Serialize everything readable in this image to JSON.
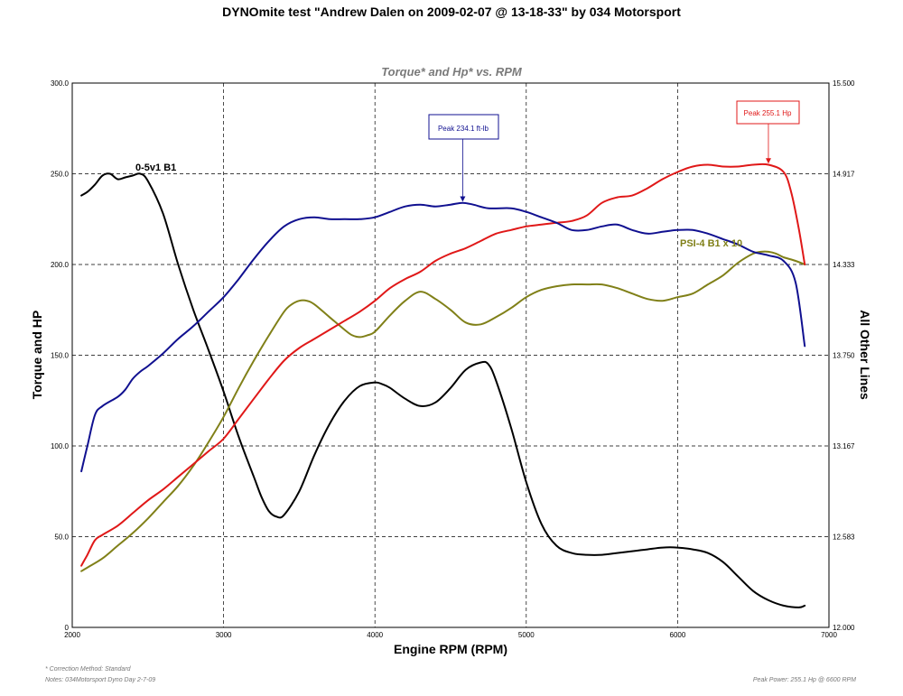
{
  "title": "DYNOmite test \"Andrew Dalen on 2009-02-07 @ 13-18-33\" by 034 Motorsport",
  "chart_data": {
    "type": "line",
    "subtitle": "Torque* and Hp* vs. RPM",
    "xlabel": "Engine RPM (RPM)",
    "ylabel_left": "Torque and HP",
    "ylabel_right": "All Other Lines",
    "xlim": [
      2000,
      7000
    ],
    "ylim_left": [
      0,
      300
    ],
    "ylim_right": [
      12.0,
      15.5
    ],
    "x_ticks": [
      "2000",
      "3000",
      "4000",
      "5000",
      "6000",
      "7000"
    ],
    "y_left_ticks": [
      "0",
      "50.0",
      "100.0",
      "150.0",
      "200.0",
      "250.0",
      "300.0"
    ],
    "y_right_ticks": [
      "12.000",
      "12.583",
      "13.167",
      "13.750",
      "14.333",
      "14.917",
      "15.500"
    ],
    "grid": true,
    "series": [
      {
        "name": "Torque",
        "color": "#101090",
        "axis": "left",
        "x": [
          2060,
          2100,
          2150,
          2200,
          2300,
          2350,
          2400,
          2450,
          2500,
          2600,
          2700,
          2800,
          2900,
          3000,
          3100,
          3200,
          3300,
          3400,
          3500,
          3600,
          3700,
          3800,
          3900,
          4000,
          4100,
          4200,
          4300,
          4400,
          4500,
          4580,
          4650,
          4750,
          4900,
          5000,
          5100,
          5200,
          5300,
          5400,
          5500,
          5600,
          5700,
          5800,
          5900,
          6000,
          6100,
          6200,
          6300,
          6400,
          6500,
          6600,
          6700,
          6780,
          6840
        ],
        "y": [
          86,
          100,
          117,
          122,
          127,
          131,
          137,
          141,
          144,
          151,
          159,
          166,
          174,
          182,
          192,
          203,
          213,
          221,
          225,
          226,
          225,
          225,
          225,
          226,
          229,
          232,
          233,
          232,
          233,
          234,
          233,
          231,
          231,
          229,
          226,
          223,
          219,
          219,
          221,
          222,
          219,
          217,
          218,
          219,
          219,
          217,
          214,
          211,
          207,
          205,
          202,
          190,
          155
        ]
      },
      {
        "name": "Horsepower",
        "color": "#e01818",
        "axis": "left",
        "x": [
          2060,
          2100,
          2150,
          2200,
          2300,
          2400,
          2500,
          2600,
          2700,
          2800,
          2900,
          3000,
          3100,
          3200,
          3300,
          3400,
          3500,
          3600,
          3700,
          3800,
          3900,
          4000,
          4100,
          4200,
          4300,
          4400,
          4500,
          4600,
          4700,
          4800,
          4900,
          5000,
          5100,
          5200,
          5300,
          5400,
          5500,
          5600,
          5700,
          5800,
          5900,
          6000,
          6100,
          6200,
          6300,
          6400,
          6500,
          6600,
          6700,
          6750,
          6800,
          6840
        ],
        "y": [
          34,
          40,
          48,
          51,
          56,
          63,
          70,
          76,
          83,
          90,
          97,
          104,
          115,
          126,
          137,
          147,
          154,
          159,
          164,
          169,
          174,
          180,
          187,
          192,
          196,
          202,
          206,
          209,
          213,
          217,
          219,
          221,
          222,
          223,
          224,
          227,
          234,
          237,
          238,
          242,
          247,
          251,
          254,
          255,
          254,
          254,
          255,
          255,
          251,
          240,
          220,
          200
        ]
      },
      {
        "name": "PSI-4 B1 x 10",
        "color": "#808018",
        "axis": "left",
        "x": [
          2060,
          2100,
          2200,
          2300,
          2400,
          2500,
          2600,
          2700,
          2800,
          2900,
          3000,
          3100,
          3200,
          3300,
          3400,
          3450,
          3500,
          3550,
          3600,
          3700,
          3800,
          3850,
          3900,
          3950,
          4000,
          4100,
          4200,
          4300,
          4400,
          4500,
          4600,
          4700,
          4800,
          4900,
          5000,
          5100,
          5200,
          5300,
          5400,
          5500,
          5600,
          5700,
          5800,
          5900,
          6000,
          6100,
          6200,
          6300,
          6400,
          6500,
          6550,
          6600,
          6650,
          6700,
          6780,
          6840
        ],
        "y": [
          31,
          33,
          38,
          45,
          52,
          60,
          69,
          78,
          89,
          102,
          116,
          132,
          147,
          161,
          174,
          178,
          180,
          180,
          178,
          171,
          164,
          161,
          160,
          161,
          163,
          172,
          180,
          185,
          181,
          175,
          168,
          167,
          171,
          176,
          182,
          186,
          188,
          189,
          189,
          189,
          187,
          184,
          181,
          180,
          182,
          184,
          189,
          194,
          201,
          206,
          207,
          207,
          206,
          204,
          202,
          200
        ]
      },
      {
        "name": "0-5v1 B1",
        "color": "#000000",
        "axis": "left",
        "x": [
          2060,
          2100,
          2150,
          2200,
          2250,
          2300,
          2350,
          2400,
          2450,
          2500,
          2600,
          2700,
          2800,
          2900,
          3000,
          3100,
          3200,
          3250,
          3300,
          3350,
          3400,
          3500,
          3600,
          3700,
          3800,
          3900,
          4000,
          4050,
          4100,
          4200,
          4300,
          4400,
          4500,
          4600,
          4700,
          4750,
          4800,
          4900,
          5000,
          5100,
          5200,
          5300,
          5400,
          5500,
          5600,
          5700,
          5800,
          5900,
          6000,
          6100,
          6200,
          6300,
          6400,
          6500,
          6600,
          6700,
          6800,
          6840
        ],
        "y": [
          238,
          240,
          244,
          249,
          250,
          247,
          248,
          249,
          250,
          246,
          228,
          200,
          175,
          153,
          130,
          105,
          83,
          72,
          64,
          61,
          62,
          75,
          95,
          112,
          125,
          133,
          135,
          134,
          132,
          126,
          122,
          124,
          132,
          142,
          146,
          145,
          136,
          110,
          80,
          57,
          45,
          41,
          40,
          40,
          41,
          42,
          43,
          44,
          44,
          43,
          41,
          36,
          28,
          20,
          15,
          12,
          11,
          12
        ]
      }
    ],
    "annotations": {
      "peak_torque": {
        "text": "Peak 234.1 ft-lb",
        "x": 4580,
        "y": 234.1,
        "series": "Torque"
      },
      "peak_power": {
        "text": "Peak 255.1 Hp",
        "x": 6600,
        "y": 255.1,
        "series": "Horsepower"
      },
      "label_psi": {
        "text": "PSI-4 B1 x 10"
      },
      "label_volt": {
        "text": "0-5v1 B1"
      }
    }
  },
  "footer": {
    "correction": "* Correction Method: Standard",
    "notes": "Notes: 034Motorsport Dyno Day 2-7-09",
    "peak_power": "Peak Power: 255.1 Hp @ 6600 RPM"
  }
}
